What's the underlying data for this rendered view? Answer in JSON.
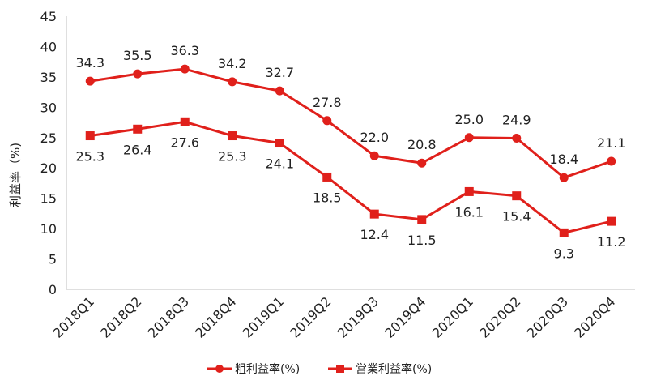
{
  "chart_data": {
    "type": "line",
    "ylabel": "利益率（%)",
    "ylim": [
      0,
      45
    ],
    "yticks": [
      0,
      5,
      10,
      15,
      20,
      25,
      30,
      35,
      40,
      45
    ],
    "grid": false,
    "legend_position": "bottom",
    "categories": [
      "2018Q1",
      "2018Q2",
      "2018Q3",
      "2018Q4",
      "2019Q1",
      "2019Q2",
      "2019Q3",
      "2019Q4",
      "2020Q1",
      "2020Q2",
      "2020Q3",
      "2020Q4"
    ],
    "series": [
      {
        "name": "粗利益率(%)",
        "marker": "circle",
        "color": "#e0201b",
        "values": [
          34.3,
          35.5,
          36.3,
          34.2,
          32.7,
          27.8,
          22.0,
          20.8,
          25.0,
          24.9,
          18.4,
          21.1
        ],
        "labels": [
          "34.3",
          "35.5",
          "36.3",
          "34.2",
          "32.7",
          "27.8",
          "22.0",
          "20.8",
          "25.0",
          "24.9",
          "18.4",
          "21.1"
        ],
        "label_position": "above"
      },
      {
        "name": "営業利益率(%)",
        "marker": "square",
        "color": "#e0201b",
        "values": [
          25.3,
          26.4,
          27.6,
          25.3,
          24.1,
          18.5,
          12.4,
          11.5,
          16.1,
          15.4,
          9.3,
          11.2
        ],
        "labels": [
          "25.3",
          "26.4",
          "27.6",
          "25.3",
          "24.1",
          "18.5",
          "12.4",
          "11.5",
          "16.1",
          "15.4",
          "9.3",
          "11.2"
        ],
        "label_position": "below"
      }
    ]
  }
}
